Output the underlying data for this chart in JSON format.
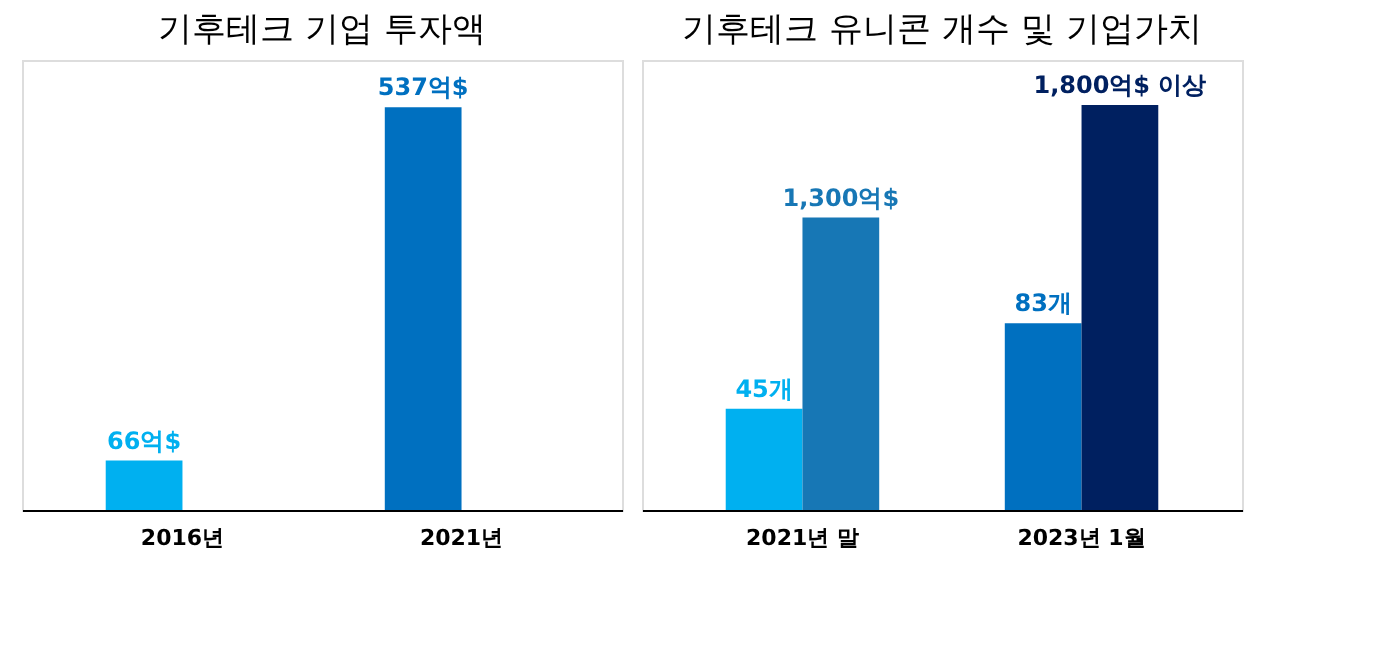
{
  "chart_data": [
    {
      "type": "bar",
      "title": "기후테크 기업 투자액",
      "categories": [
        "2016년",
        "2021년"
      ],
      "ylim": [
        0,
        600
      ],
      "tick_labels": "x",
      "series": [
        {
          "values": [
            66,
            537
          ],
          "colors": [
            "#00b0f0",
            "#0070c0"
          ],
          "value_labels": [
            "66억$",
            "537억$"
          ]
        }
      ]
    },
    {
      "type": "bar",
      "title": "기후테크 유니콘 개수 및 기업가치",
      "categories": [
        "2021년 말",
        "2023년 1월"
      ],
      "ylim": [
        0,
        200
      ],
      "y2lim": [
        0,
        2000
      ],
      "tick_labels": "x",
      "series": [
        {
          "values": [
            45,
            83
          ],
          "colors": [
            "#00b0f0",
            "#0070c0"
          ],
          "value_labels": [
            "45개",
            "83개"
          ]
        },
        {
          "axis": "y2",
          "values": [
            1300,
            1800
          ],
          "colors": [
            "#1777b5",
            "#002060"
          ],
          "value_labels": [
            "1,300억$",
            "1,800억$ 이상"
          ]
        }
      ]
    }
  ]
}
